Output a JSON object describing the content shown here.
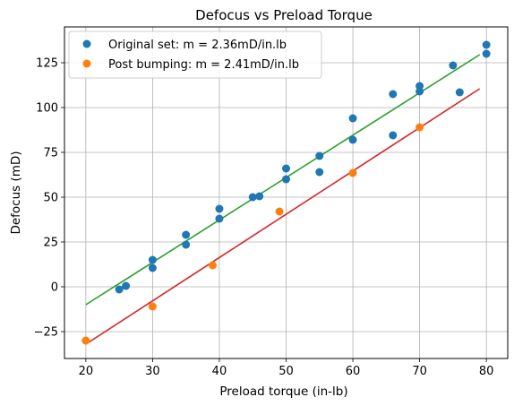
{
  "chart_data": {
    "type": "scatter",
    "title": "Defocus vs Preload Torque",
    "xlabel": "Preload torque (in-lb)",
    "ylabel": "Defocus (mD)",
    "xlim": [
      16.8,
      83.2
    ],
    "ylim": [
      -40,
      145
    ],
    "xticks": [
      20,
      30,
      40,
      50,
      60,
      70,
      80
    ],
    "yticks": [
      -25,
      0,
      25,
      50,
      75,
      100,
      125
    ],
    "grid": true,
    "legend_position": "top-left",
    "series": [
      {
        "name": "Original set: m = 2.36mD/in.lb",
        "kind": "points",
        "color": "#1f77b4",
        "points": [
          [
            25,
            -1.5
          ],
          [
            26,
            0.5
          ],
          [
            30,
            15
          ],
          [
            30,
            10.5
          ],
          [
            35,
            29
          ],
          [
            35,
            23.5
          ],
          [
            40,
            43.5
          ],
          [
            40,
            38
          ],
          [
            45,
            50
          ],
          [
            46,
            50.5
          ],
          [
            50,
            66
          ],
          [
            50,
            60
          ],
          [
            55,
            73
          ],
          [
            55,
            64
          ],
          [
            60,
            94
          ],
          [
            60,
            82
          ],
          [
            66,
            107.5
          ],
          [
            66,
            84.5
          ],
          [
            70,
            112
          ],
          [
            70,
            109
          ],
          [
            75,
            123.5
          ],
          [
            76,
            108.5
          ],
          [
            80,
            135
          ],
          [
            80,
            130
          ]
        ]
      },
      {
        "name": "Post bumping: m = 2.41mD/in.lb",
        "kind": "points",
        "color": "#ff7f0e",
        "points": [
          [
            20,
            -30
          ],
          [
            30,
            -11
          ],
          [
            39,
            12
          ],
          [
            49,
            42
          ],
          [
            60,
            63.5
          ],
          [
            70,
            89
          ]
        ]
      },
      {
        "kind": "fit",
        "color": "#2ca02c",
        "points": [
          [
            20,
            -10
          ],
          [
            79,
            129.5
          ]
        ]
      },
      {
        "kind": "fit",
        "color": "#d62728",
        "points": [
          [
            20,
            -32
          ],
          [
            79,
            110.5
          ]
        ]
      }
    ]
  }
}
